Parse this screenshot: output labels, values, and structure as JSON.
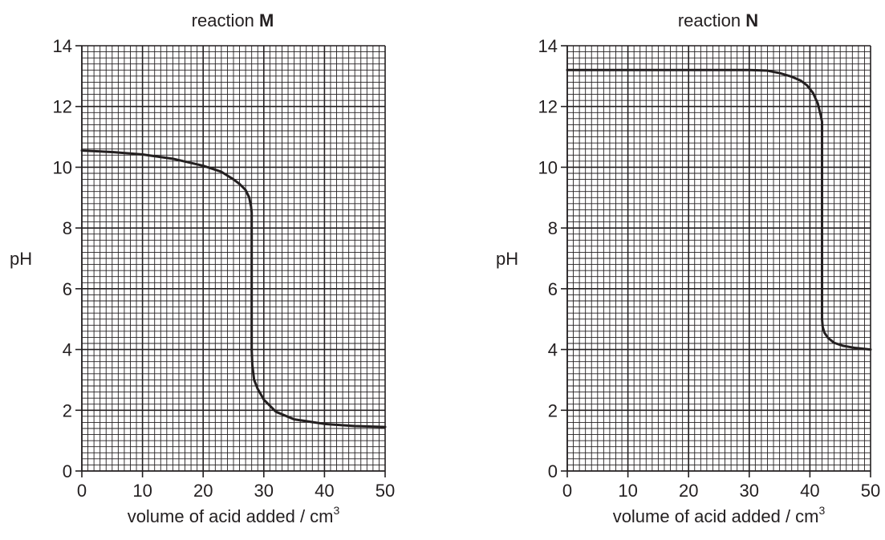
{
  "chart_data": [
    {
      "type": "line",
      "title": "reaction",
      "title_id": "M",
      "xlabel": "volume of acid added / cm",
      "xlabel_sup": "3",
      "ylabel": "pH",
      "xlim": [
        0,
        50
      ],
      "ylim": [
        0,
        14
      ],
      "xticks": [
        0,
        10,
        20,
        30,
        40,
        50
      ],
      "yticks": [
        0,
        2,
        4,
        6,
        8,
        10,
        12,
        14
      ],
      "grid": true,
      "series": [
        {
          "x": [
            0,
            5,
            10,
            15,
            20,
            23,
            25,
            26,
            27,
            27.6,
            27.9,
            28,
            28,
            28.1,
            28.4,
            29,
            30,
            32,
            35,
            40,
            45,
            50
          ],
          "y": [
            10.55,
            10.5,
            10.42,
            10.28,
            10.05,
            9.85,
            9.6,
            9.45,
            9.25,
            9.0,
            8.7,
            8.5,
            4.0,
            3.5,
            3.0,
            2.7,
            2.35,
            1.95,
            1.7,
            1.55,
            1.48,
            1.45
          ]
        }
      ]
    },
    {
      "type": "line",
      "title": "reaction",
      "title_id": "N",
      "xlabel": "volume of acid added / cm",
      "xlabel_sup": "3",
      "ylabel": "pH",
      "xlim": [
        0,
        50
      ],
      "ylim": [
        0,
        14
      ],
      "xticks": [
        0,
        10,
        20,
        30,
        40,
        50
      ],
      "yticks": [
        0,
        2,
        4,
        6,
        8,
        10,
        12,
        14
      ],
      "grid": true,
      "series": [
        {
          "x": [
            0,
            10,
            20,
            30,
            33,
            35,
            37,
            38.5,
            39.5,
            40.5,
            41.3,
            41.8,
            42,
            42,
            42.1,
            42.4,
            43,
            44,
            45.5,
            47.5,
            50
          ],
          "y": [
            13.2,
            13.2,
            13.2,
            13.2,
            13.18,
            13.1,
            12.98,
            12.85,
            12.7,
            12.45,
            12.1,
            11.7,
            11.5,
            5.0,
            4.75,
            4.55,
            4.38,
            4.22,
            4.12,
            4.05,
            4.0
          ]
        }
      ]
    }
  ]
}
